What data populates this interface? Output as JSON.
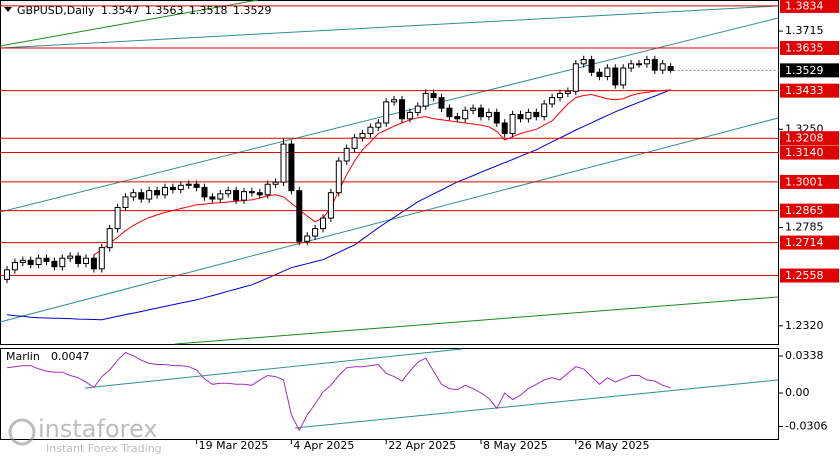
{
  "chart_data": [
    {
      "type": "candlestick",
      "title": "GBPUSD,Daily",
      "categories": [
        null,
        null,
        null,
        null,
        null,
        null,
        null,
        null,
        null,
        null,
        null,
        null,
        null,
        null,
        null,
        null,
        null,
        null,
        null,
        null,
        null,
        null,
        null,
        null,
        "19 Mar 2025",
        null,
        null,
        null,
        null,
        null,
        null,
        null,
        null,
        null,
        null,
        null,
        "4 Apr 2025",
        null,
        null,
        null,
        null,
        null,
        null,
        null,
        null,
        null,
        null,
        null,
        "22 Apr 2025",
        null,
        null,
        null,
        null,
        null,
        null,
        null,
        null,
        null,
        null,
        null,
        "8 May 2025",
        null,
        null,
        null,
        null,
        null,
        null,
        null,
        null,
        null,
        null,
        null,
        "26 May 2025",
        null,
        null,
        null,
        null,
        null,
        null,
        null,
        null,
        null,
        null,
        null,
        null
      ],
      "open": [
        1.254,
        1.2585,
        1.262,
        1.263,
        1.261,
        1.264,
        1.2625,
        1.26,
        1.264,
        1.265,
        1.2615,
        1.264,
        1.259,
        1.269,
        1.278,
        1.288,
        1.293,
        1.295,
        1.292,
        1.296,
        1.294,
        1.2975,
        1.2965,
        1.2985,
        1.299,
        1.2975,
        1.293,
        1.292,
        1.2945,
        1.296,
        1.2915,
        1.2955,
        1.295,
        1.294,
        1.299,
        1.3,
        1.318,
        1.296,
        1.272,
        1.2745,
        1.278,
        1.283,
        1.295,
        1.31,
        1.316,
        1.321,
        1.323,
        1.326,
        1.328,
        1.338,
        1.339,
        1.33,
        1.333,
        1.336,
        1.342,
        1.34,
        1.335,
        1.331,
        1.33,
        1.334,
        1.335,
        1.331,
        1.333,
        1.328,
        1.323,
        1.332,
        1.33,
        1.333,
        1.331,
        1.337,
        1.34,
        1.342,
        1.343,
        1.356,
        1.358,
        1.352,
        1.35,
        1.354,
        1.346,
        1.354,
        1.356,
        1.356,
        1.358,
        1.353,
        1.3547
      ],
      "high": [
        1.2603,
        1.2638,
        1.2648,
        1.2648,
        1.2658,
        1.2658,
        1.2643,
        1.2658,
        1.2668,
        1.2668,
        1.2658,
        1.2658,
        1.2708,
        1.2798,
        1.2898,
        1.2948,
        1.2968,
        1.2968,
        1.2978,
        1.2978,
        1.2993,
        1.2993,
        1.3003,
        1.3008,
        1.3008,
        1.2993,
        1.2948,
        1.2963,
        1.2978,
        1.2978,
        1.2973,
        1.2973,
        1.2968,
        1.3008,
        1.3018,
        1.3207,
        1.3198,
        1.2978,
        1.2763,
        1.2798,
        1.2848,
        1.2968,
        1.3118,
        1.3178,
        1.3228,
        1.3248,
        1.3278,
        1.3298,
        1.3398,
        1.3408,
        1.3408,
        1.3348,
        1.3378,
        1.3438,
        1.3438,
        1.3418,
        1.3368,
        1.3328,
        1.3358,
        1.3368,
        1.3368,
        1.3348,
        1.3348,
        1.3298,
        1.3338,
        1.3338,
        1.3348,
        1.3348,
        1.3388,
        1.3418,
        1.3438,
        1.3448,
        1.3578,
        1.3598,
        1.3598,
        1.3538,
        1.3558,
        1.3558,
        1.3558,
        1.3578,
        1.3578,
        1.3598,
        1.3598,
        1.3578,
        1.3563
      ],
      "low": [
        1.2522,
        1.2567,
        1.2602,
        1.2592,
        1.2592,
        1.2607,
        1.2582,
        1.2582,
        1.2622,
        1.2597,
        1.2597,
        1.2572,
        1.2572,
        1.2672,
        1.2762,
        1.2862,
        1.2912,
        1.2902,
        1.2902,
        1.2922,
        1.2922,
        1.2947,
        1.2947,
        1.2967,
        1.2957,
        1.2912,
        1.2902,
        1.2902,
        1.2927,
        1.2897,
        1.2897,
        1.2932,
        1.2922,
        1.2922,
        1.2972,
        1.2982,
        1.2942,
        1.2702,
        1.2702,
        1.2727,
        1.2762,
        1.2812,
        1.2932,
        1.3082,
        1.3142,
        1.3192,
        1.3212,
        1.3242,
        1.3262,
        1.3362,
        1.3282,
        1.3282,
        1.3312,
        1.3342,
        1.3382,
        1.3332,
        1.3292,
        1.3282,
        1.3282,
        1.3322,
        1.3292,
        1.3292,
        1.3262,
        1.3212,
        1.3212,
        1.3282,
        1.3282,
        1.3292,
        1.3292,
        1.3352,
        1.3382,
        1.3402,
        1.3412,
        1.3542,
        1.3502,
        1.3482,
        1.3482,
        1.3442,
        1.3442,
        1.3522,
        1.3542,
        1.3542,
        1.3512,
        1.3512,
        1.3518
      ],
      "close": [
        1.2585,
        1.262,
        1.263,
        1.261,
        1.264,
        1.2625,
        1.26,
        1.264,
        1.265,
        1.2615,
        1.264,
        1.259,
        1.269,
        1.278,
        1.288,
        1.293,
        1.295,
        1.292,
        1.296,
        1.294,
        1.2975,
        1.2965,
        1.2985,
        1.299,
        1.2975,
        1.293,
        1.292,
        1.2945,
        1.296,
        1.2915,
        1.2955,
        1.295,
        1.294,
        1.299,
        1.3,
        1.318,
        1.296,
        1.272,
        1.2745,
        1.278,
        1.283,
        1.295,
        1.31,
        1.316,
        1.321,
        1.323,
        1.326,
        1.328,
        1.338,
        1.339,
        1.33,
        1.333,
        1.336,
        1.342,
        1.34,
        1.335,
        1.331,
        1.33,
        1.334,
        1.335,
        1.331,
        1.333,
        1.328,
        1.323,
        1.332,
        1.33,
        1.333,
        1.331,
        1.337,
        1.34,
        1.342,
        1.343,
        1.356,
        1.358,
        1.352,
        1.35,
        1.354,
        1.346,
        1.354,
        1.356,
        1.356,
        1.358,
        1.353,
        1.356,
        1.3529
      ],
      "lines": [
        {
          "color": "#ff0000",
          "values": [
            null,
            null,
            null,
            null,
            null,
            null,
            null,
            null,
            null,
            null,
            null,
            1.2656,
            1.268,
            1.271,
            1.274,
            1.277,
            1.2795,
            1.2815,
            1.2832,
            1.2845,
            1.2857,
            1.2866,
            1.2875,
            1.2884,
            1.2893,
            1.2896,
            1.29,
            1.2903,
            1.2906,
            1.291,
            1.2913,
            1.2916,
            1.2925,
            1.2935,
            1.294,
            1.293,
            1.29,
            1.287,
            1.284,
            1.2813,
            1.283,
            1.288,
            1.296,
            1.3035,
            1.31,
            1.3153,
            1.319,
            1.323,
            1.3247,
            1.3265,
            1.328,
            1.3295,
            1.3305,
            1.331,
            1.33,
            1.3295,
            1.329,
            1.3285,
            1.328,
            1.3275,
            1.327,
            1.3262,
            1.324,
            1.32,
            1.3215,
            1.323,
            1.324,
            1.325,
            1.327,
            1.329,
            1.333,
            1.337,
            1.34,
            1.341,
            1.3415,
            1.3405,
            1.3395,
            1.339,
            1.3395,
            1.341,
            1.342,
            1.3425,
            1.343,
            1.3433,
            1.3437
          ]
        },
        {
          "color": "#0000cd",
          "values": [
            1.2372,
            1.2368,
            1.2365,
            1.2361,
            1.2358,
            1.2357,
            1.2356,
            1.2355,
            1.2354,
            1.2352,
            1.2351,
            1.235,
            1.2349,
            1.2357,
            1.2365,
            1.2373,
            1.238,
            1.2388,
            1.2396,
            1.2404,
            1.2412,
            1.242,
            1.2428,
            1.2435,
            1.2443,
            1.2453,
            1.2463,
            1.2473,
            1.2484,
            1.2494,
            1.2504,
            1.2514,
            1.253,
            1.2546,
            1.2562,
            1.2579,
            1.2595,
            1.2605,
            1.2614,
            1.2624,
            1.2633,
            1.2651,
            1.2668,
            1.2686,
            1.2703,
            1.273,
            1.2757,
            1.2784,
            1.2809,
            1.2833,
            1.2858,
            1.2882,
            1.2907,
            1.2926,
            1.2945,
            1.2963,
            1.2982,
            1.3001,
            1.3016,
            1.3031,
            1.3047,
            1.3062,
            1.3077,
            1.3092,
            1.3107,
            1.3123,
            1.3138,
            1.3153,
            1.3172,
            1.3191,
            1.3209,
            1.3228,
            1.3247,
            1.3264,
            1.3281,
            1.3299,
            1.3316,
            1.3333,
            1.3348,
            1.3363,
            1.3378,
            1.3393,
            1.3407,
            1.3422,
            1.3437
          ]
        }
      ],
      "levels": [
        1.3834,
        1.3635,
        1.3433,
        1.3208,
        {
          "value": 1.314,
          "label": "1.3140"
        },
        1.3001,
        1.2865,
        1.2714,
        1.2558
      ],
      "level_color": "#e00000",
      "ylim": [
        1.2234,
        1.3862
      ],
      "yticks": [
        1.3715,
        {
          "value": 1.325,
          "label": "1.3250"
        },
        1.2785,
        {
          "value": 1.232,
          "label": "1.2320"
        }
      ],
      "watermark": {
        "brand": "instaforex",
        "tagline": "Instant Forex Trading"
      }
    },
    {
      "type": "line",
      "title": "Marlin",
      "series": [
        {
          "name": "Marlin",
          "color": "#a030c0",
          "values": [
            0.023,
            0.024,
            0.025,
            0.025,
            0.022,
            0.02,
            0.019,
            0.019,
            0.016,
            0.014,
            0.01,
            0.005,
            0.015,
            0.021,
            0.03,
            0.037,
            0.034,
            0.03,
            0.027,
            0.026,
            0.026,
            0.025,
            0.025,
            0.024,
            0.021,
            0.013,
            0.008,
            0.009,
            0.009,
            0.008,
            0.008,
            0.007,
            0.012,
            0.016,
            0.015,
            0.012,
            -0.02,
            -0.034,
            -0.02,
            -0.01,
            0.001,
            0.007,
            0.016,
            0.023,
            0.024,
            0.024,
            0.025,
            0.026,
            0.018,
            0.015,
            0.011,
            0.02,
            0.028,
            0.032,
            0.02,
            0.008,
            0.004,
            0.003,
            0.007,
            0.004,
            0.0,
            -0.005,
            -0.014,
            0.0,
            -0.006,
            -0.002,
            0.004,
            0.008,
            0.012,
            0.014,
            0.012,
            0.018,
            0.024,
            0.022,
            0.015,
            0.008,
            0.014,
            0.01,
            0.013,
            0.016,
            0.016,
            0.012,
            0.011,
            0.007,
            0.0047
          ]
        }
      ],
      "ylim": [
        -0.0429,
        0.0411
      ],
      "yticks": [
        0.0338,
        {
          "value": 0,
          "label": "0.00"
        },
        -0.0306
      ]
    }
  ]
}
